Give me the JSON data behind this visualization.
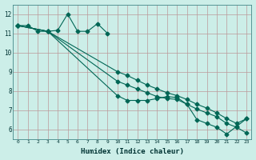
{
  "xlabel": "Humidex (Indice chaleur)",
  "bg_color": "#cceee8",
  "grid_color": "#bb9999",
  "line_color": "#006655",
  "xlim": [
    -0.5,
    23.5
  ],
  "ylim": [
    5.5,
    12.5
  ],
  "xticks": [
    0,
    1,
    2,
    3,
    4,
    5,
    6,
    7,
    8,
    9,
    10,
    11,
    12,
    13,
    14,
    15,
    16,
    17,
    18,
    19,
    20,
    21,
    22,
    23
  ],
  "yticks": [
    6,
    7,
    8,
    9,
    10,
    11,
    12
  ],
  "line1_x": [
    0,
    1,
    2,
    3,
    4,
    5,
    6,
    7,
    8,
    9
  ],
  "line1_y": [
    11.4,
    11.4,
    11.1,
    11.1,
    11.15,
    12.0,
    11.1,
    11.1,
    11.5,
    11.0
  ],
  "line2_x": [
    0,
    3,
    10,
    11,
    12,
    13,
    14,
    15,
    16,
    17,
    18,
    19,
    20,
    21,
    22,
    23
  ],
  "line2_y": [
    11.4,
    11.1,
    7.75,
    7.5,
    7.5,
    7.5,
    7.6,
    7.7,
    7.65,
    7.3,
    6.5,
    6.3,
    6.1,
    5.75,
    6.15,
    6.55
  ],
  "line3_x": [
    0,
    3,
    10,
    11,
    12,
    13,
    14,
    15,
    16,
    17,
    18,
    19,
    20,
    21,
    22,
    23
  ],
  "line3_y": [
    11.4,
    11.1,
    8.5,
    8.3,
    8.1,
    7.9,
    7.7,
    7.6,
    7.55,
    7.3,
    7.05,
    6.85,
    6.65,
    6.3,
    6.1,
    5.8
  ],
  "line4_x": [
    0,
    3,
    10,
    11,
    12,
    13,
    14,
    15,
    16,
    17,
    18,
    19,
    20,
    21,
    22,
    23
  ],
  "line4_y": [
    11.4,
    11.1,
    9.0,
    8.8,
    8.55,
    8.3,
    8.1,
    7.9,
    7.75,
    7.55,
    7.3,
    7.1,
    6.85,
    6.55,
    6.3,
    6.55
  ]
}
